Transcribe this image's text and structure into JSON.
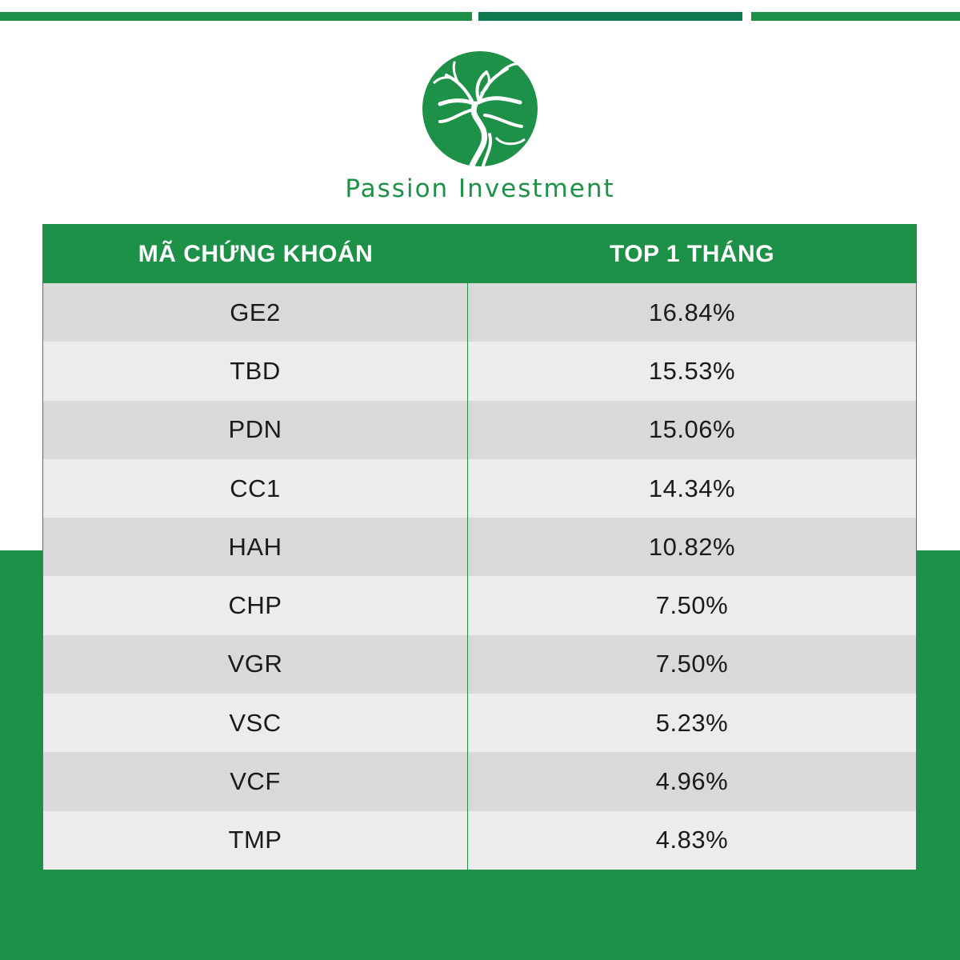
{
  "colors": {
    "brand_green": "#1e9148",
    "dark_green": "#0f7a4f",
    "row_dark": "#d9d9d9",
    "row_light": "#ececec"
  },
  "brand": {
    "logo_icon": "tree-in-circle-icon",
    "name": "Passion Investment"
  },
  "table": {
    "headers": [
      "MÃ CHỨNG KHOÁN",
      "TOP 1 THÁNG"
    ],
    "rows": [
      {
        "code": "GE2",
        "value": "16.84%"
      },
      {
        "code": "TBD",
        "value": "15.53%"
      },
      {
        "code": "PDN",
        "value": "15.06%"
      },
      {
        "code": "CC1",
        "value": "14.34%"
      },
      {
        "code": "HAH",
        "value": "10.82%"
      },
      {
        "code": "CHP",
        "value": "7.50%"
      },
      {
        "code": "VGR",
        "value": "7.50%"
      },
      {
        "code": "VSC",
        "value": "5.23%"
      },
      {
        "code": "VCF",
        "value": "4.96%"
      },
      {
        "code": "TMP",
        "value": "4.83%"
      }
    ]
  }
}
